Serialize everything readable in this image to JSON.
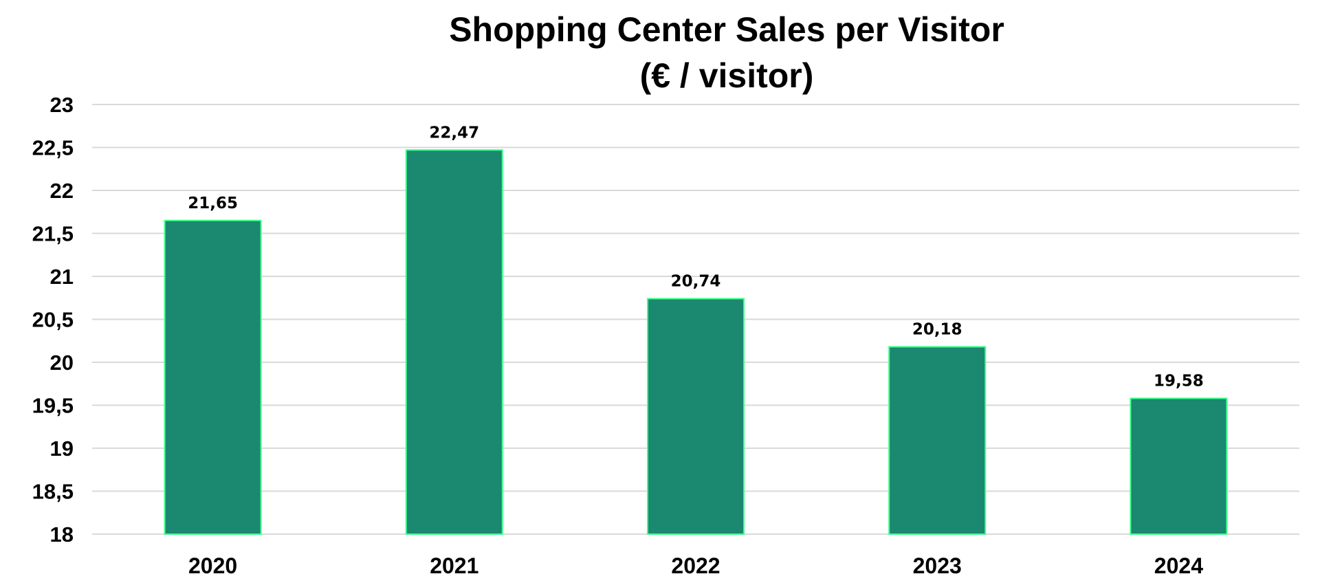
{
  "chart_data": {
    "type": "bar",
    "title": [
      "Shopping Center Sales per Visitor",
      "(€ / visitor)"
    ],
    "xlabel": "",
    "ylabel": "",
    "categories": [
      "2020",
      "2021",
      "2022",
      "2023",
      "2024"
    ],
    "values": [
      21.65,
      22.47,
      20.74,
      20.18,
      19.58
    ],
    "data_labels": [
      "21,65",
      "22,47",
      "20,74",
      "20,18",
      "19,58"
    ],
    "ylim": [
      18,
      23
    ],
    "yticks": [
      18,
      18.5,
      19,
      19.5,
      20,
      20.5,
      21,
      21.5,
      22,
      22.5,
      23
    ],
    "ytick_labels": [
      "18",
      "18,5",
      "19",
      "19,5",
      "20",
      "20,5",
      "21",
      "21,5",
      "22",
      "22,5",
      "23"
    ],
    "grid": true,
    "legend": "none",
    "colors": {
      "bar_fill": "#1b8870",
      "bar_edge": "#3dff8a",
      "grid": "#d9d9d9"
    }
  }
}
